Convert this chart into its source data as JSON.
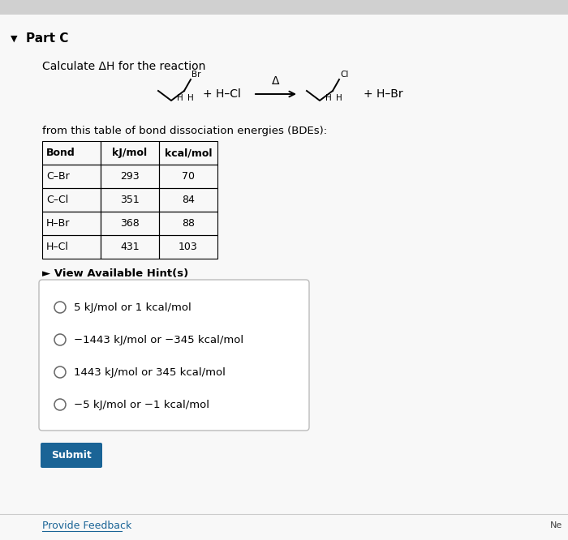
{
  "bg_color": "#f0f0f0",
  "content_bg": "#f0f0f0",
  "title": "Part C",
  "subtitle": "Calculate ΔH for the reaction",
  "table_header": [
    "Bond",
    "kJ/mol",
    "kcal/mol"
  ],
  "table_rows": [
    [
      "C–Br",
      "293",
      "70"
    ],
    [
      "C–Cl",
      "351",
      "84"
    ],
    [
      "H–Br",
      "368",
      "88"
    ],
    [
      "H–Cl",
      "431",
      "103"
    ]
  ],
  "table_label": "from this table of bond dissociation energies (BDEs):",
  "hint_text": "► View Available Hint(s)",
  "options": [
    "5 kJ/mol or 1 kcal/mol",
    "−1443 kJ/mol or −345 kcal/mol",
    "1443 kJ/mol or 345 kcal/mol",
    "−5 kJ/mol or −1 kcal/mol"
  ],
  "submit_text": "Submit",
  "submit_bg": "#1a6496",
  "submit_color": "#ffffff",
  "feedback_text": "Provide Feedback",
  "top_bar_color": "#d0d0d0",
  "box_bg": "#ffffff",
  "box_border": "#bbbbbb"
}
